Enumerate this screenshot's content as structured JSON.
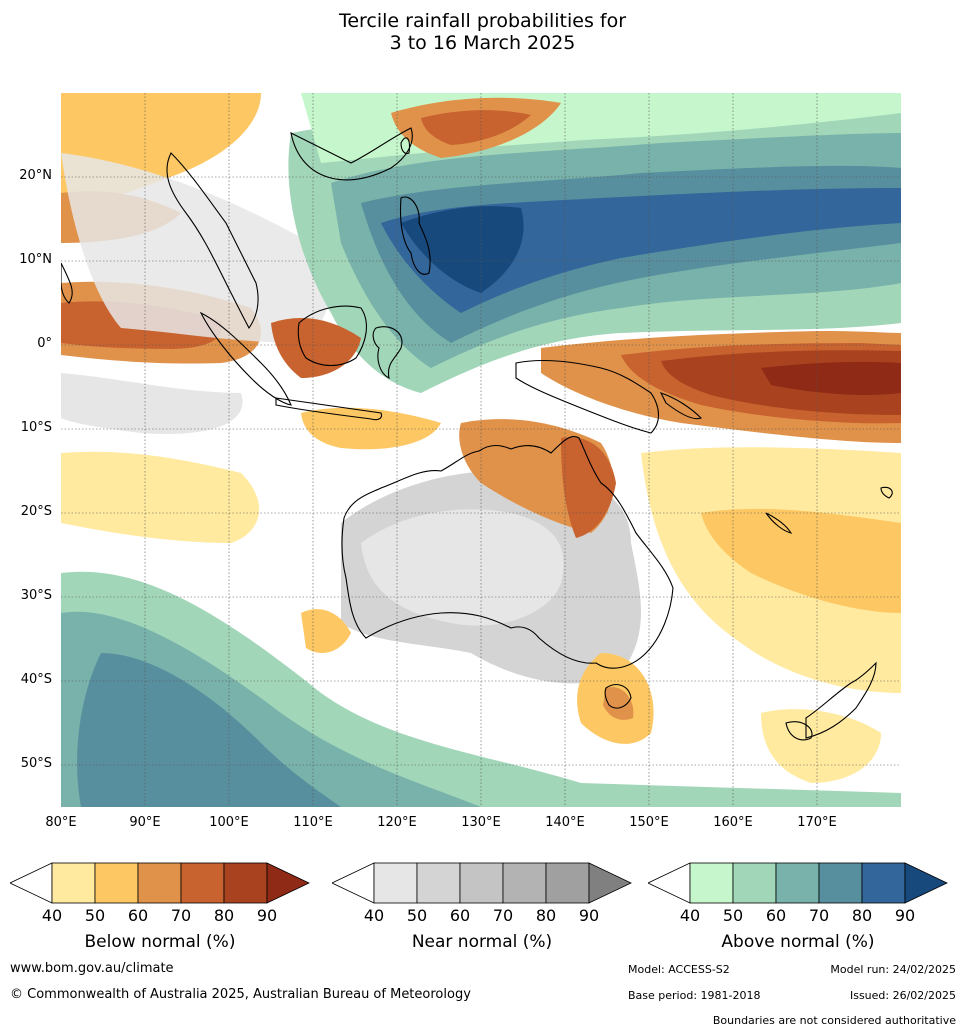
{
  "title": {
    "line1": "Tercile rainfall probabilities for",
    "line2": "3 to 16 March 2025"
  },
  "map": {
    "lat_labels": [
      "20°N",
      "10°N",
      "0°",
      "10°S",
      "20°S",
      "30°S",
      "40°S",
      "50°S"
    ],
    "lon_labels": [
      "80°E",
      "90°E",
      "100°E",
      "110°E",
      "120°E",
      "130°E",
      "140°E",
      "150°E",
      "160°E",
      "170°E"
    ],
    "lon_range": [
      80,
      180
    ],
    "lat_range": [
      -55,
      30
    ]
  },
  "legends": {
    "ticks": [
      "40",
      "50",
      "60",
      "70",
      "80",
      "90"
    ],
    "below": {
      "label": "Below normal (%)",
      "colors": [
        "#ffffff",
        "#ffeaa0",
        "#fdc863",
        "#e0924a",
        "#c8622f",
        "#a9431f",
        "#8e2a16"
      ]
    },
    "near": {
      "label": "Near normal (%)",
      "colors": [
        "#ffffff",
        "#e6e6e6",
        "#d4d4d4",
        "#c4c4c4",
        "#b3b3b3",
        "#a0a0a0",
        "#808080"
      ]
    },
    "above": {
      "label": "Above normal (%)",
      "colors": [
        "#ffffff",
        "#c6f7cc",
        "#a2d6b9",
        "#78b2aa",
        "#588f9e",
        "#33669a",
        "#17497d"
      ]
    }
  },
  "footer": {
    "url": "www.bom.gov.au/climate",
    "copyright": "© Commonwealth of Australia 2025, Australian Bureau of Meteorology",
    "model": "Model: ACCESS-S2",
    "model_run": "Model run: 24/02/2025",
    "base_period": "Base period: 1981-2018",
    "issued": "Issued: 26/02/2025",
    "disclaimer": "Boundaries are not considered authoritative"
  }
}
